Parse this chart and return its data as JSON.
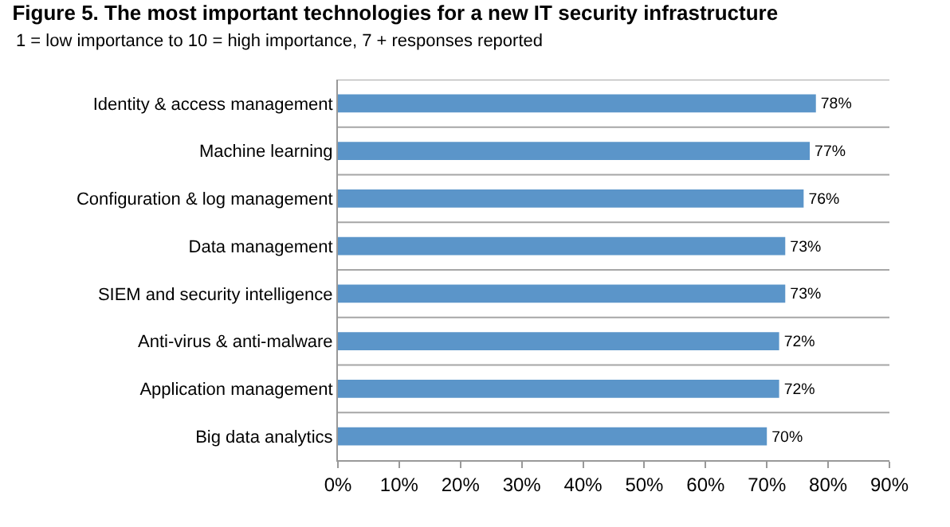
{
  "chart_data": {
    "type": "bar",
    "orientation": "horizontal",
    "title": "Figure 5. The most important technologies for a new IT security infrastructure",
    "subtitle": "1 = low importance to 10 = high importance, 7 + responses reported",
    "categories": [
      "Identity & access management",
      "Machine learning",
      "Configuration & log management",
      "Data management",
      "SIEM and security intelligence",
      "Anti-virus & anti-malware",
      "Application management",
      "Big data analytics"
    ],
    "values": [
      78,
      77,
      76,
      73,
      73,
      72,
      72,
      70
    ],
    "value_labels": [
      "78%",
      "77%",
      "76%",
      "73%",
      "73%",
      "72%",
      "72%",
      "70%"
    ],
    "color": "#5b95c9",
    "xlim": [
      0,
      90
    ],
    "xticks": [
      {
        "value": 0,
        "label": "0%"
      },
      {
        "value": 10,
        "label": "10%"
      },
      {
        "value": 20,
        "label": "20%"
      },
      {
        "value": 30,
        "label": "30%"
      },
      {
        "value": 40,
        "label": "40%"
      },
      {
        "value": 50,
        "label": "50%"
      },
      {
        "value": 60,
        "label": "60%"
      },
      {
        "value": 70,
        "label": "70%"
      },
      {
        "value": 80,
        "label": "80%"
      },
      {
        "value": 90,
        "label": "90%"
      }
    ],
    "grid": "y",
    "legend": false
  }
}
